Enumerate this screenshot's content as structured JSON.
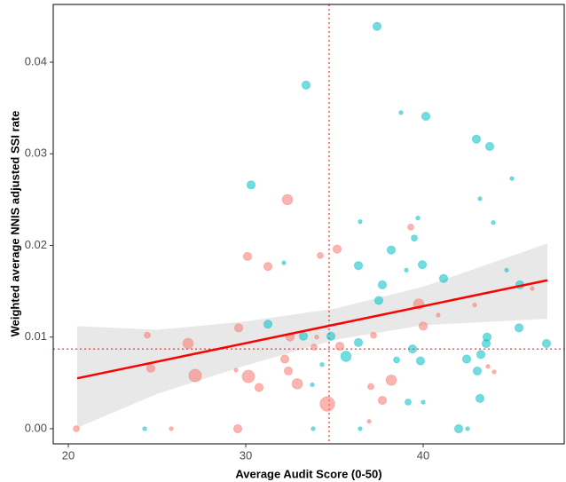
{
  "chart_data": {
    "type": "scatter",
    "x_label": "Average Audit Score (0-50)",
    "y_label": "Weighted average NNIS adjusted SSI rate",
    "xlim": [
      19.15,
      47.95
    ],
    "ylim": [
      -0.00165,
      0.0463
    ],
    "xticks": [
      20,
      30,
      40
    ],
    "yticks": [
      {
        "value": 0,
        "label": "0.00"
      },
      0.01,
      0.02,
      0.03,
      0.04
    ],
    "grid": false,
    "series": [
      {
        "color": "#F8766D",
        "x": [
          20.45,
          24.45,
          24.65,
          25.8,
          26.75,
          27.15,
          29.55,
          29.6,
          29.45,
          30.1,
          30.15,
          30.75,
          31.25,
          32.35,
          32.2,
          32.4,
          32.5,
          32.9,
          33.85,
          34.0,
          34.2,
          34.6,
          35.15,
          35.3,
          36.95,
          37.05,
          37.2,
          37.7,
          38.2,
          39.3,
          39.75,
          40.0,
          40.85,
          42.9,
          43.65,
          44.0,
          46.15
        ],
        "values": [
          0,
          0.0102,
          0.0066,
          0,
          0.0093,
          0.0058,
          0,
          0.011,
          0.0064,
          0.0188,
          0.0057,
          0.0045,
          0.0177,
          0.025,
          0.0076,
          0.0063,
          0.01,
          0.0049,
          0.0089,
          0.01,
          0.0189,
          0.0027,
          0.0196,
          0.009,
          0.0008,
          0.0046,
          0.0102,
          0.0031,
          0.0053,
          0.022,
          0.0136,
          0.0112,
          0.0124,
          0.0135,
          0.0068,
          0.0062,
          0.0153
        ],
        "sizes": [
          2,
          2,
          3,
          1,
          4,
          5,
          3,
          3,
          1,
          3,
          5,
          3,
          3,
          4,
          3,
          3,
          3,
          4,
          2,
          1,
          2,
          6,
          3,
          3,
          1,
          2,
          2,
          3,
          4,
          2,
          4,
          3,
          1,
          1,
          1,
          1,
          1
        ]
      },
      {
        "color": "#00BFC4",
        "x": [
          24.3,
          30.3,
          31.25,
          32.15,
          33.4,
          33.25,
          33.8,
          33.75,
          34.3,
          34.8,
          35.65,
          36.45,
          36.35,
          36.35,
          36.45,
          37.4,
          37.7,
          37.5,
          38.2,
          38.5,
          38.75,
          39.15,
          39.05,
          39.4,
          39.5,
          39.7,
          39.95,
          39.85,
          40.0,
          40.15,
          41.15,
          42.0,
          42.45,
          42.5,
          43.0,
          43.2,
          43.05,
          43.25,
          43.2,
          43.55,
          43.6,
          43.75,
          43.95,
          44.7,
          45.0,
          45.4,
          45.45,
          46.95
        ],
        "values": [
          0,
          0.0266,
          0.0114,
          0.0181,
          0.0375,
          0.0101,
          0,
          0.0048,
          0.007,
          0.0101,
          0.0079,
          0.0226,
          0.0178,
          0.0094,
          0,
          0.0439,
          0.0157,
          0.014,
          0.0195,
          0.0075,
          0.0345,
          0.0029,
          0.0173,
          0.0087,
          0.0208,
          0.023,
          0.0179,
          0.0074,
          0.0029,
          0.0341,
          0.0164,
          0,
          0.0076,
          0,
          0.0316,
          0.0033,
          0.0063,
          0.0081,
          0.0251,
          0.0093,
          0.01,
          0.0308,
          0.0225,
          0.0173,
          0.0273,
          0.011,
          0.0157,
          0.0093
        ],
        "sizes": [
          1,
          3,
          3,
          1,
          3,
          3,
          1,
          1,
          1,
          3,
          4,
          1,
          3,
          3,
          1,
          3,
          3,
          3,
          3,
          2,
          1,
          2,
          1,
          3,
          2,
          1,
          3,
          3,
          1,
          3,
          3,
          3,
          3,
          1,
          3,
          3,
          3,
          3,
          1,
          3,
          3,
          3,
          1,
          1,
          1,
          3,
          3,
          3
        ]
      }
    ],
    "fit_line": {
      "color": "#FF0000",
      "x": [
        20.5,
        47
      ],
      "values": [
        0.0055,
        0.0162
      ]
    },
    "band": {
      "color": "#d9d9d9",
      "x": [
        20.5,
        25,
        30,
        35,
        40,
        47
      ],
      "lower": [
        0.0001,
        0.0038,
        0.0069,
        0.0097,
        0.0113,
        0.012
      ],
      "upper": [
        0.0112,
        0.0108,
        0.0117,
        0.0131,
        0.0155,
        0.0202
      ]
    },
    "vline": 34.7,
    "hline": 0.0087,
    "ref_color": "#FF0000"
  }
}
